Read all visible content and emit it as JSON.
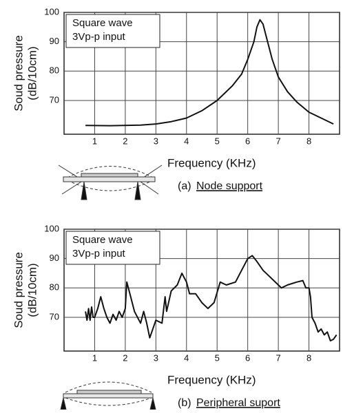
{
  "chart_data": [
    {
      "type": "line",
      "y_label": [
        "Soud pressure",
        "(dB/10cm)"
      ],
      "annotation": [
        "Square wave",
        "3Vp-p input"
      ],
      "x_label": "Frequency (KHz)",
      "caption_label": "(a)",
      "caption": "Node support",
      "xlim": [
        0,
        9
      ],
      "ylim": [
        58.5,
        100
      ],
      "xticks": [
        1,
        2,
        3,
        4,
        5,
        6,
        7,
        8
      ],
      "yticks": [
        70,
        80,
        90,
        100
      ],
      "grid": true,
      "color": "#111111",
      "x": [
        0.7,
        1.5,
        2.5,
        3.0,
        3.5,
        4.0,
        4.5,
        5.0,
        5.5,
        5.8,
        6.0,
        6.2,
        6.3,
        6.4,
        6.5,
        6.6,
        6.8,
        7.0,
        7.3,
        7.6,
        8.0,
        8.4,
        8.8
      ],
      "values": [
        61.5,
        61.4,
        61.6,
        62,
        62.8,
        64,
        66.5,
        70,
        75,
        79,
        84,
        90,
        95,
        97.5,
        96,
        92,
        84,
        78,
        73,
        69.5,
        66,
        64,
        62
      ]
    },
    {
      "type": "line",
      "y_label": [
        "Soud pressure",
        "(dB/10cm)"
      ],
      "annotation": [
        "Square wave",
        "3Vp-p input"
      ],
      "x_label": "Frequency (KHz)",
      "caption_label": "(b)",
      "caption": "Peripheral suport",
      "xlim": [
        0,
        9
      ],
      "ylim": [
        58.5,
        100
      ],
      "xticks": [
        1,
        2,
        3,
        4,
        5,
        6,
        7,
        8
      ],
      "yticks": [
        70,
        80,
        90,
        100
      ],
      "grid": true,
      "color": "#111111",
      "x": [
        0.7,
        0.75,
        0.8,
        0.85,
        0.9,
        0.95,
        1.0,
        1.1,
        1.2,
        1.3,
        1.4,
        1.5,
        1.6,
        1.7,
        1.8,
        1.9,
        2.0,
        2.05,
        2.15,
        2.3,
        2.5,
        2.6,
        2.7,
        2.8,
        3.0,
        3.2,
        3.3,
        3.35,
        3.5,
        3.7,
        3.85,
        4.0,
        4.1,
        4.3,
        4.5,
        4.7,
        4.9,
        5.1,
        5.3,
        5.6,
        5.8,
        6.0,
        6.15,
        6.3,
        6.5,
        6.7,
        7.0,
        7.1,
        7.3,
        7.6,
        7.8,
        7.9,
        8.0,
        8.05,
        8.1,
        8.2,
        8.3,
        8.4,
        8.5,
        8.6,
        8.7,
        8.8,
        8.9
      ],
      "values": [
        72,
        69,
        73,
        69,
        73.5,
        70,
        70,
        73,
        77,
        73,
        70,
        68,
        71,
        69,
        72,
        70,
        73,
        82,
        78,
        72,
        68,
        72,
        68,
        63,
        69,
        68,
        77,
        72,
        79,
        81,
        85,
        82,
        78,
        78,
        75,
        73,
        75,
        82,
        81,
        82,
        86,
        90,
        91,
        89,
        86,
        84,
        81,
        80,
        81,
        82,
        82.5,
        80,
        80,
        77,
        70,
        68,
        65,
        66,
        64,
        65,
        62,
        62.5,
        64
      ]
    }
  ]
}
